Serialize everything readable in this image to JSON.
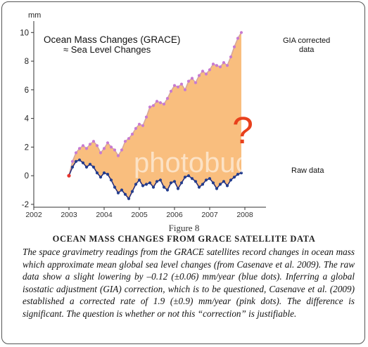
{
  "figure": {
    "number": "Figure 8",
    "title": "OCEAN MASS CHANGES FROM GRACE SATELLITE DATA",
    "caption": "The space gravimetry readings from the GRACE satellites record changes in ocean mass which approximate mean global sea level changes (from Casenave et al. 2009). The raw data show a slight lowering by –0.12 (±0.06) mm/year (blue dots). Inferring a global isostatic adjustment (GIA) correction, which is to be questioned, Casenave et al. (2009) established a corrected rate of 1.9 (±0.9) mm/year (pink dots). The difference is significant. The question is whether or not this “correction” is justifiable."
  },
  "watermark": "photobucket",
  "chart_data": {
    "type": "line",
    "title": "Ocean Mass Changes (GRACE)",
    "subtitle": "≈ Sea Level Changes",
    "xlabel": "",
    "ylabel": "mm",
    "xlim": [
      2002,
      2008.6
    ],
    "ylim": [
      -2.2,
      10.8
    ],
    "x_ticks": [
      "2002",
      "2003",
      "2004",
      "2005",
      "2006",
      "2007",
      "2008"
    ],
    "y_ticks": [
      "-2",
      "0",
      "2",
      "4",
      "6",
      "8",
      "10"
    ],
    "annotation": "?",
    "grid": false,
    "fill_between_series": true,
    "colors": {
      "fill": "#f9be7e",
      "gia_line": "#d7a79a",
      "gia_marker": "#c77ad2",
      "raw_line": "#2b2f7a",
      "raw_marker": "#223d8f",
      "start_point": "#e8352e",
      "question": "#e8401c"
    },
    "start_point": {
      "x": 2003.0,
      "y": 0.0
    },
    "series": [
      {
        "name": "GIA corrected data",
        "x": [
          2003.0,
          2003.1,
          2003.2,
          2003.3,
          2003.4,
          2003.5,
          2003.6,
          2003.7,
          2003.8,
          2003.9,
          2004.0,
          2004.1,
          2004.2,
          2004.3,
          2004.4,
          2004.5,
          2004.6,
          2004.7,
          2004.8,
          2004.9,
          2005.0,
          2005.1,
          2005.2,
          2005.3,
          2005.4,
          2005.5,
          2005.6,
          2005.7,
          2005.8,
          2005.9,
          2006.0,
          2006.1,
          2006.2,
          2006.3,
          2006.4,
          2006.5,
          2006.6,
          2006.7,
          2006.8,
          2006.9,
          2007.0,
          2007.1,
          2007.2,
          2007.3,
          2007.4,
          2007.5,
          2007.6,
          2007.7,
          2007.8,
          2007.9
        ],
        "values": [
          0.0,
          1.0,
          1.6,
          1.9,
          2.1,
          1.9,
          2.2,
          2.4,
          2.1,
          1.6,
          1.9,
          2.3,
          2.0,
          1.8,
          1.4,
          1.8,
          2.4,
          2.6,
          2.9,
          3.3,
          3.6,
          3.5,
          4.1,
          4.8,
          4.9,
          5.2,
          5.1,
          5.0,
          5.4,
          5.9,
          6.3,
          6.2,
          6.4,
          6.0,
          6.6,
          6.8,
          6.5,
          7.0,
          7.3,
          7.1,
          7.4,
          7.8,
          7.7,
          7.6,
          7.9,
          7.7,
          8.3,
          9.0,
          9.6,
          10.0
        ]
      },
      {
        "name": "Raw data",
        "x": [
          2003.0,
          2003.1,
          2003.2,
          2003.3,
          2003.4,
          2003.5,
          2003.6,
          2003.7,
          2003.8,
          2003.9,
          2004.0,
          2004.1,
          2004.2,
          2004.3,
          2004.4,
          2004.5,
          2004.6,
          2004.7,
          2004.8,
          2004.9,
          2005.0,
          2005.1,
          2005.2,
          2005.3,
          2005.4,
          2005.5,
          2005.6,
          2005.7,
          2005.8,
          2005.9,
          2006.0,
          2006.1,
          2006.2,
          2006.3,
          2006.4,
          2006.5,
          2006.6,
          2006.7,
          2006.8,
          2006.9,
          2007.0,
          2007.1,
          2007.2,
          2007.3,
          2007.4,
          2007.5,
          2007.6,
          2007.7,
          2007.8,
          2007.9
        ],
        "values": [
          0.0,
          0.6,
          1.0,
          1.1,
          0.9,
          0.6,
          0.8,
          0.6,
          0.2,
          -0.1,
          0.2,
          0.1,
          -0.3,
          -0.8,
          -1.2,
          -1.0,
          -1.3,
          -1.6,
          -1.1,
          -0.6,
          -0.3,
          -0.7,
          -0.6,
          -0.5,
          -0.8,
          -0.4,
          -0.3,
          -0.8,
          -1.0,
          -0.5,
          -0.4,
          -0.9,
          -0.5,
          -0.1,
          0.0,
          -0.2,
          -0.4,
          -0.8,
          -0.6,
          -0.3,
          -0.2,
          -0.5,
          -0.9,
          -0.6,
          -0.4,
          -0.7,
          -0.3,
          -0.1,
          0.1,
          0.2
        ]
      }
    ]
  }
}
